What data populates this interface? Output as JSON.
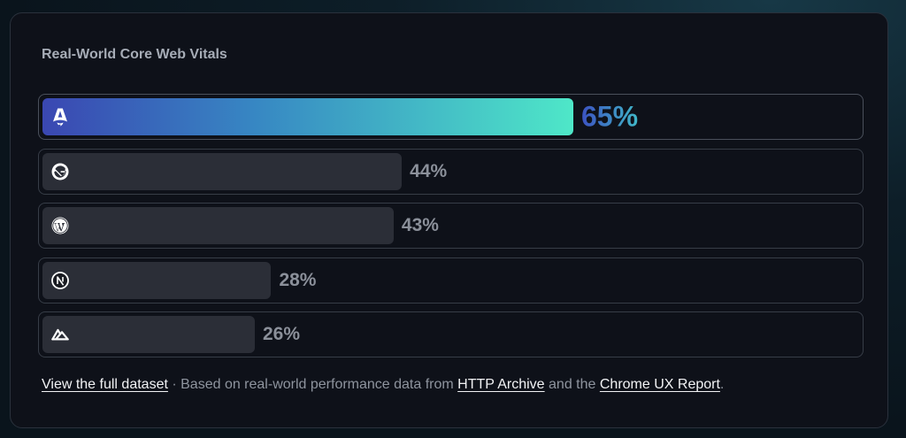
{
  "card": {
    "title": "Real-World Core Web Vitals"
  },
  "chart_data": {
    "type": "bar",
    "orientation": "horizontal",
    "title": "Real-World Core Web Vitals",
    "value_labels": [
      "65%",
      "44%",
      "43%",
      "28%",
      "26%"
    ],
    "values": [
      65,
      44,
      43,
      28,
      26
    ],
    "highlight_index": 0,
    "categories_icons": [
      "astro-logo-icon",
      "gatsby-logo-icon",
      "wordpress-logo-icon",
      "nextjs-logo-icon",
      "nuxt-logo-icon"
    ],
    "colors": {
      "highlight_gradient": [
        "#3a47b2",
        "#4ee7c8"
      ],
      "bar": "#2b2e37",
      "label": "#8b909a"
    }
  },
  "footer": {
    "link_dataset": "View the full dataset",
    "text_1": " · Based on real-world performance data from ",
    "link_http_archive": "HTTP Archive",
    "text_2": " and the ",
    "link_crux": "Chrome UX Report",
    "text_3": "."
  }
}
